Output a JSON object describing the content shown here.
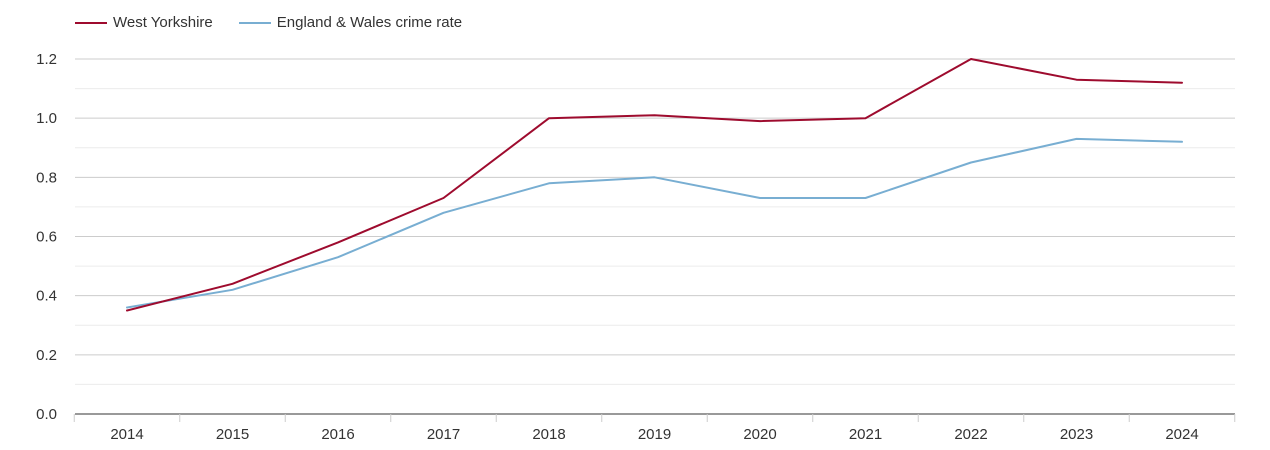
{
  "chart_data": {
    "type": "line",
    "title": "",
    "xlabel": "",
    "ylabel": "",
    "x": [
      "2014",
      "2015",
      "2016",
      "2017",
      "2018",
      "2019",
      "2020",
      "2021",
      "2022",
      "2023",
      "2024"
    ],
    "ylim": [
      0,
      1.2
    ],
    "yticks": [
      "0.0",
      "0.2",
      "0.4",
      "0.6",
      "0.8",
      "1.0",
      "1.2"
    ],
    "grid": true,
    "legend_position": "top-left",
    "series": [
      {
        "name": "West Yorkshire",
        "color": "#9e0b2e",
        "values": [
          0.35,
          0.44,
          0.58,
          0.73,
          1.0,
          1.01,
          0.99,
          1.0,
          1.2,
          1.13,
          1.12
        ]
      },
      {
        "name": "England & Wales crime rate",
        "color": "#78aed2",
        "values": [
          0.36,
          0.42,
          0.53,
          0.68,
          0.78,
          0.8,
          0.73,
          0.73,
          0.85,
          0.93,
          0.92
        ]
      }
    ]
  }
}
